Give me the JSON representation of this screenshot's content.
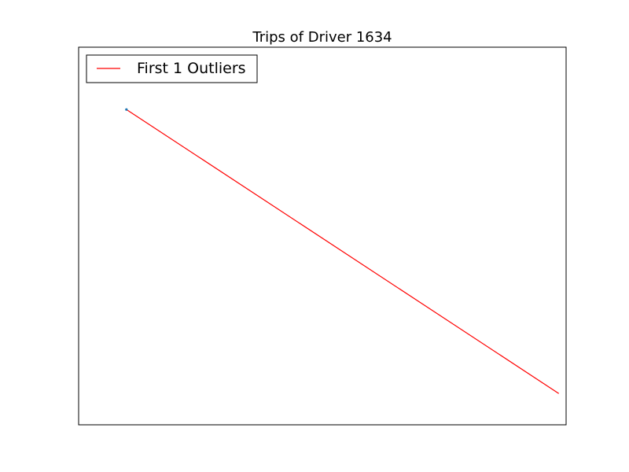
{
  "chart_data": {
    "type": "line",
    "title": "Trips of Driver 1634",
    "xlabel": "",
    "ylabel": "",
    "xticks": [],
    "yticks": [],
    "xlim": [
      0,
      100
    ],
    "ylim": [
      0,
      100
    ],
    "grid": false,
    "legend": {
      "placement": "top-left",
      "entries": [
        {
          "label": "First 1 Outliers",
          "color": "#ff0000"
        }
      ]
    },
    "series": [
      {
        "name": "First 1 Outliers",
        "color": "#ff0000",
        "x": [
          9.8,
          98.5
        ],
        "y": [
          83.5,
          8.3
        ]
      }
    ],
    "markers": [
      {
        "x": 9.8,
        "y": 83.5,
        "color": "#1f77b4"
      }
    ]
  }
}
